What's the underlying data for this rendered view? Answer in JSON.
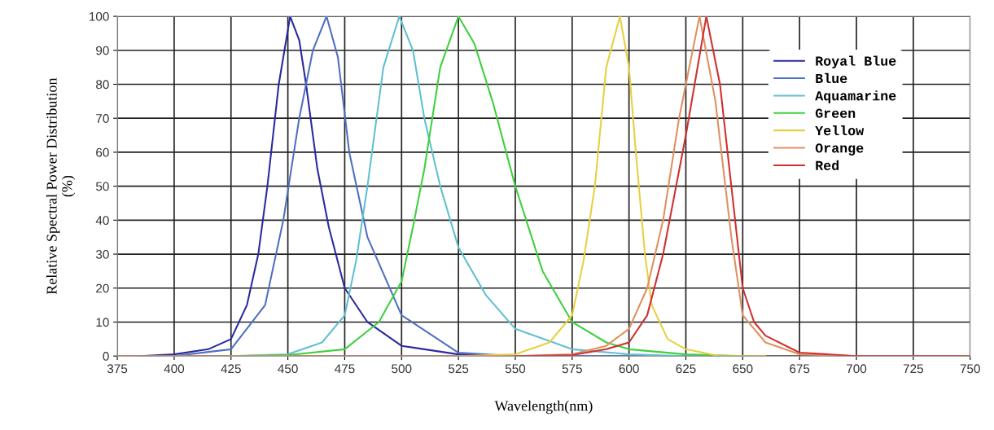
{
  "chart_data": {
    "type": "line",
    "xlabel": "Wavelength(nm)",
    "ylabel": "Relative Spectral Power Distribution\n(%)",
    "xlim": [
      375,
      750
    ],
    "xticks": [
      375,
      400,
      425,
      450,
      475,
      500,
      525,
      550,
      575,
      600,
      625,
      650,
      675,
      700,
      725,
      750
    ],
    "ylim": [
      0,
      100
    ],
    "yticks": [
      0,
      10,
      20,
      30,
      40,
      50,
      60,
      70,
      80,
      90,
      100
    ],
    "grid": true,
    "legend": "upper right",
    "marker": "none",
    "line_style": "solid",
    "series": [
      {
        "name": "Royal Blue",
        "color": "#2a2aa0",
        "x": [
          385,
          400,
          415,
          425,
          432,
          437,
          441,
          446,
          451,
          455,
          458,
          463,
          468,
          475,
          485,
          500,
          525,
          550,
          575
        ],
        "values": [
          0,
          0.5,
          2,
          5,
          15,
          30,
          50,
          80,
          100,
          93,
          80,
          55,
          38,
          20,
          10,
          3,
          0.5,
          0,
          0
        ]
      },
      {
        "name": "Blue",
        "color": "#5070c0",
        "x": [
          400,
          425,
          440,
          448,
          455,
          461,
          467,
          472,
          477,
          485,
          500,
          525,
          550,
          575,
          600,
          650
        ],
        "values": [
          0,
          2,
          15,
          40,
          70,
          90,
          100,
          88,
          60,
          35,
          12,
          1,
          0,
          0,
          0,
          0
        ]
      },
      {
        "name": "Aquamarine",
        "color": "#60c0d0",
        "x": [
          425,
          450,
          465,
          475,
          480,
          485,
          492,
          499,
          505,
          510,
          517,
          525,
          537,
          550,
          575,
          600,
          625,
          650
        ],
        "values": [
          0,
          0.5,
          4,
          12,
          28,
          50,
          85,
          100,
          90,
          70,
          50,
          32,
          18,
          8,
          2,
          0.5,
          0,
          0
        ]
      },
      {
        "name": "Green",
        "color": "#40d040",
        "x": [
          425,
          450,
          475,
          490,
          500,
          505,
          510,
          517,
          525,
          532,
          540,
          550,
          562,
          575,
          590,
          600,
          625,
          650
        ],
        "values": [
          0,
          0.3,
          2,
          10,
          22,
          38,
          55,
          85,
          100,
          92,
          75,
          50,
          25,
          10,
          4,
          2,
          0.5,
          0
        ]
      },
      {
        "name": "Yellow",
        "color": "#e8d040",
        "x": [
          525,
          550,
          565,
          575,
          580,
          585,
          590,
          596,
          600,
          603,
          607,
          610,
          617,
          625,
          640,
          660
        ],
        "values": [
          0,
          0.5,
          4,
          12,
          28,
          50,
          85,
          100,
          85,
          60,
          30,
          15,
          5,
          2,
          0,
          0
        ]
      },
      {
        "name": "Orange",
        "color": "#e09060",
        "x": [
          375,
          550,
          575,
          590,
          600,
          608,
          615,
          622,
          631,
          638,
          645,
          650,
          660,
          675,
          700,
          750
        ],
        "values": [
          0,
          0,
          0.5,
          3,
          8,
          20,
          40,
          70,
          100,
          75,
          35,
          12,
          4,
          0.5,
          0,
          0
        ]
      },
      {
        "name": "Red",
        "color": "#d03030",
        "x": [
          550,
          575,
          590,
          600,
          608,
          615,
          625,
          634,
          640,
          645,
          650,
          655,
          660,
          675,
          700,
          750
        ],
        "values": [
          0,
          0.3,
          2,
          4,
          12,
          30,
          65,
          100,
          80,
          50,
          20,
          10,
          6,
          1,
          0,
          0
        ]
      }
    ]
  }
}
